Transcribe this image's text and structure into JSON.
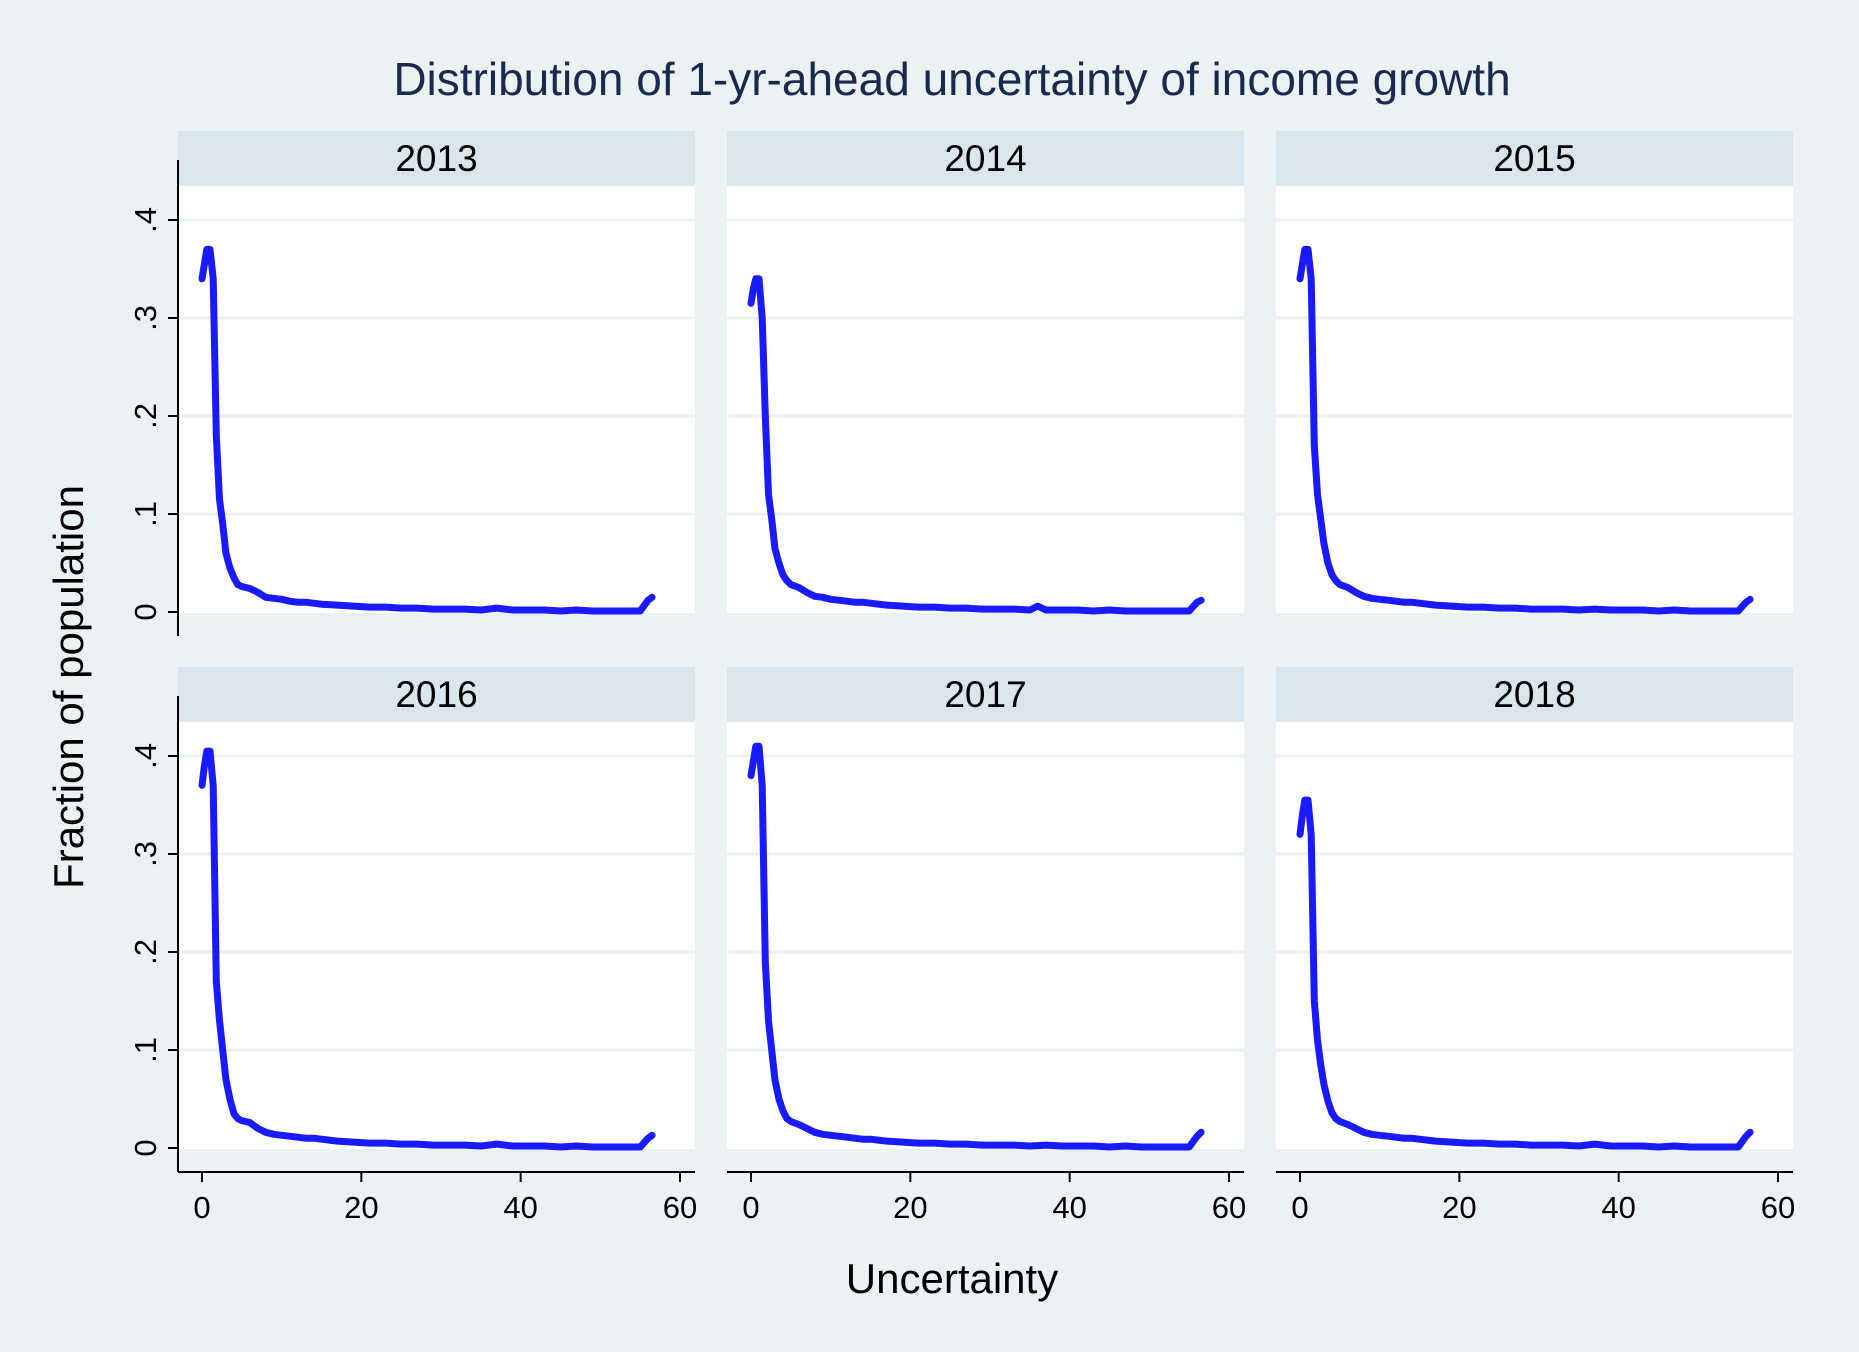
{
  "chart_data": {
    "type": "line",
    "title": "Distribution of 1-yr-ahead uncertainty of income growth",
    "xlabel": "Uncertainty",
    "ylabel": "Fraction of population",
    "xlim": [
      0,
      60
    ],
    "ylim": [
      0,
      0.4
    ],
    "xticks": [
      0,
      20,
      40,
      60
    ],
    "xtick_labels": [
      "0",
      "20",
      "40",
      "60"
    ],
    "yticks": [
      0,
      0.1,
      0.2,
      0.3,
      0.4
    ],
    "ytick_labels": [
      "0",
      ".1",
      ".2",
      ".3",
      ".4"
    ],
    "grid": true,
    "line_color": "#1a1aff",
    "panels": [
      {
        "label": "2013",
        "x": [
          0,
          0.3,
          0.6,
          1,
          1.4,
          1.8,
          2.2,
          2.6,
          3,
          3.5,
          4,
          4.5,
          5,
          6,
          7,
          8,
          9,
          10,
          11,
          12,
          13,
          14,
          15,
          17,
          19,
          21,
          23,
          25,
          27,
          29,
          31,
          33,
          35,
          37,
          39,
          41,
          43,
          45,
          47,
          49,
          51,
          53,
          55,
          56,
          56.5
        ],
        "y": [
          0.34,
          0.355,
          0.37,
          0.37,
          0.34,
          0.18,
          0.115,
          0.09,
          0.06,
          0.045,
          0.035,
          0.028,
          0.026,
          0.024,
          0.02,
          0.015,
          0.014,
          0.013,
          0.011,
          0.01,
          0.01,
          0.009,
          0.008,
          0.007,
          0.006,
          0.005,
          0.005,
          0.004,
          0.004,
          0.003,
          0.003,
          0.003,
          0.002,
          0.004,
          0.002,
          0.002,
          0.002,
          0.001,
          0.002,
          0.001,
          0.001,
          0.001,
          0.001,
          0.012,
          0.015
        ]
      },
      {
        "label": "2014",
        "x": [
          0,
          0.3,
          0.6,
          1,
          1.4,
          1.8,
          2.2,
          2.6,
          3,
          3.5,
          4,
          4.5,
          5,
          6,
          7,
          8,
          9,
          10,
          11,
          12,
          13,
          14,
          15,
          17,
          19,
          21,
          23,
          25,
          27,
          29,
          31,
          33,
          35,
          36,
          37,
          39,
          41,
          43,
          45,
          47,
          49,
          51,
          53,
          55,
          56,
          56.5
        ],
        "y": [
          0.315,
          0.33,
          0.34,
          0.34,
          0.3,
          0.2,
          0.12,
          0.095,
          0.065,
          0.05,
          0.038,
          0.032,
          0.028,
          0.025,
          0.02,
          0.016,
          0.015,
          0.013,
          0.012,
          0.011,
          0.01,
          0.01,
          0.009,
          0.007,
          0.006,
          0.005,
          0.005,
          0.004,
          0.004,
          0.003,
          0.003,
          0.003,
          0.002,
          0.006,
          0.002,
          0.002,
          0.002,
          0.001,
          0.002,
          0.001,
          0.001,
          0.001,
          0.001,
          0.001,
          0.01,
          0.012
        ]
      },
      {
        "label": "2015",
        "x": [
          0,
          0.3,
          0.6,
          1,
          1.4,
          1.8,
          2.2,
          2.6,
          3,
          3.5,
          4,
          4.5,
          5,
          6,
          7,
          8,
          9,
          10,
          11,
          12,
          13,
          14,
          15,
          17,
          19,
          21,
          23,
          25,
          27,
          29,
          31,
          33,
          35,
          37,
          39,
          41,
          43,
          45,
          47,
          49,
          51,
          53,
          55,
          56,
          56.5
        ],
        "y": [
          0.34,
          0.355,
          0.37,
          0.37,
          0.34,
          0.17,
          0.12,
          0.095,
          0.07,
          0.05,
          0.038,
          0.032,
          0.028,
          0.025,
          0.02,
          0.016,
          0.014,
          0.013,
          0.012,
          0.011,
          0.01,
          0.01,
          0.009,
          0.007,
          0.006,
          0.005,
          0.005,
          0.004,
          0.004,
          0.003,
          0.003,
          0.003,
          0.002,
          0.003,
          0.002,
          0.002,
          0.002,
          0.001,
          0.002,
          0.001,
          0.001,
          0.001,
          0.001,
          0.01,
          0.013
        ]
      },
      {
        "label": "2016",
        "x": [
          0,
          0.3,
          0.6,
          1,
          1.4,
          1.8,
          2.2,
          2.6,
          3,
          3.5,
          4,
          4.5,
          5,
          6,
          7,
          8,
          9,
          10,
          11,
          12,
          13,
          14,
          15,
          17,
          19,
          21,
          23,
          25,
          27,
          29,
          31,
          33,
          35,
          37,
          39,
          41,
          43,
          45,
          47,
          49,
          51,
          53,
          55,
          56,
          56.5
        ],
        "y": [
          0.37,
          0.39,
          0.405,
          0.405,
          0.37,
          0.17,
          0.13,
          0.1,
          0.07,
          0.05,
          0.035,
          0.03,
          0.028,
          0.026,
          0.02,
          0.016,
          0.014,
          0.013,
          0.012,
          0.011,
          0.01,
          0.01,
          0.009,
          0.007,
          0.006,
          0.005,
          0.005,
          0.004,
          0.004,
          0.003,
          0.003,
          0.003,
          0.002,
          0.004,
          0.002,
          0.002,
          0.002,
          0.001,
          0.002,
          0.001,
          0.001,
          0.001,
          0.001,
          0.01,
          0.013
        ]
      },
      {
        "label": "2017",
        "x": [
          0,
          0.3,
          0.6,
          1,
          1.4,
          1.8,
          2.2,
          2.6,
          3,
          3.5,
          4,
          4.5,
          5,
          6,
          7,
          8,
          9,
          10,
          11,
          12,
          13,
          14,
          15,
          17,
          19,
          21,
          23,
          25,
          27,
          29,
          31,
          33,
          35,
          37,
          39,
          41,
          43,
          45,
          47,
          49,
          51,
          53,
          55,
          56,
          56.5
        ],
        "y": [
          0.38,
          0.395,
          0.41,
          0.41,
          0.37,
          0.19,
          0.13,
          0.1,
          0.07,
          0.05,
          0.038,
          0.03,
          0.027,
          0.024,
          0.02,
          0.016,
          0.014,
          0.013,
          0.012,
          0.011,
          0.01,
          0.009,
          0.009,
          0.007,
          0.006,
          0.005,
          0.005,
          0.004,
          0.004,
          0.003,
          0.003,
          0.003,
          0.002,
          0.003,
          0.002,
          0.002,
          0.002,
          0.001,
          0.002,
          0.001,
          0.001,
          0.001,
          0.001,
          0.012,
          0.016
        ]
      },
      {
        "label": "2018",
        "x": [
          0,
          0.3,
          0.6,
          1,
          1.4,
          1.8,
          2.2,
          2.6,
          3,
          3.5,
          4,
          4.5,
          5,
          6,
          7,
          8,
          9,
          10,
          11,
          12,
          13,
          14,
          15,
          17,
          19,
          21,
          23,
          25,
          27,
          29,
          31,
          33,
          35,
          37,
          39,
          41,
          43,
          45,
          47,
          49,
          51,
          53,
          55,
          56,
          56.5
        ],
        "y": [
          0.32,
          0.34,
          0.355,
          0.355,
          0.32,
          0.15,
          0.11,
          0.085,
          0.065,
          0.048,
          0.036,
          0.03,
          0.027,
          0.024,
          0.02,
          0.016,
          0.014,
          0.013,
          0.012,
          0.011,
          0.01,
          0.01,
          0.009,
          0.007,
          0.006,
          0.005,
          0.005,
          0.004,
          0.004,
          0.003,
          0.003,
          0.003,
          0.002,
          0.004,
          0.002,
          0.002,
          0.002,
          0.001,
          0.002,
          0.001,
          0.001,
          0.001,
          0.001,
          0.012,
          0.016
        ]
      }
    ]
  }
}
